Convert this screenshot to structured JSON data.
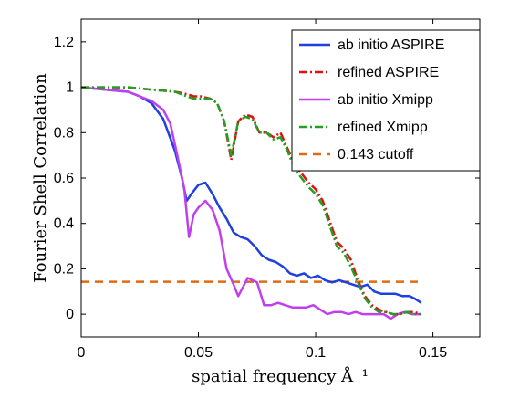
{
  "chart_data": {
    "type": "line",
    "title": "",
    "xlabel": "spatial frequency Å⁻¹",
    "ylabel": "Fourier Shell Correlation",
    "xlim": [
      0,
      0.17
    ],
    "ylim": [
      -0.1,
      1.3
    ],
    "xticks": [
      0,
      0.05,
      0.1,
      0.15
    ],
    "xtick_labels": [
      "0",
      "0.05",
      "0.1",
      "0.15"
    ],
    "yticks": [
      0,
      0.2,
      0.4,
      0.6,
      0.8,
      1,
      1.2
    ],
    "ytick_labels": [
      "0",
      "0.2",
      "0.4",
      "0.6",
      "0.8",
      "1",
      "1.2"
    ],
    "grid": false,
    "legend_position": "top-right",
    "series": [
      {
        "name": "ab initio ASPIRE",
        "color": "#1f3fe0",
        "style": "solid",
        "x": [
          0,
          0.01,
          0.02,
          0.025,
          0.03,
          0.035,
          0.04,
          0.043,
          0.045,
          0.047,
          0.05,
          0.053,
          0.056,
          0.059,
          0.062,
          0.065,
          0.068,
          0.071,
          0.074,
          0.077,
          0.08,
          0.083,
          0.086,
          0.089,
          0.092,
          0.095,
          0.098,
          0.101,
          0.104,
          0.107,
          0.11,
          0.113,
          0.116,
          0.119,
          0.122,
          0.125,
          0.128,
          0.131,
          0.134,
          0.137,
          0.14,
          0.142,
          0.145
        ],
        "y": [
          1.0,
          0.99,
          0.98,
          0.96,
          0.93,
          0.86,
          0.72,
          0.6,
          0.5,
          0.53,
          0.57,
          0.58,
          0.53,
          0.47,
          0.42,
          0.36,
          0.34,
          0.33,
          0.3,
          0.26,
          0.24,
          0.23,
          0.21,
          0.18,
          0.17,
          0.18,
          0.16,
          0.17,
          0.15,
          0.14,
          0.15,
          0.14,
          0.13,
          0.12,
          0.13,
          0.1,
          0.09,
          0.09,
          0.09,
          0.08,
          0.08,
          0.07,
          0.05
        ]
      },
      {
        "name": "refined ASPIRE",
        "color": "#e01010",
        "style": "dashdot",
        "x": [
          0,
          0.01,
          0.02,
          0.03,
          0.04,
          0.045,
          0.048,
          0.051,
          0.055,
          0.058,
          0.061,
          0.064,
          0.067,
          0.07,
          0.073,
          0.076,
          0.079,
          0.082,
          0.085,
          0.088,
          0.091,
          0.094,
          0.097,
          0.1,
          0.103,
          0.106,
          0.109,
          0.112,
          0.115,
          0.118,
          0.121,
          0.124,
          0.127,
          0.13,
          0.133,
          0.136,
          0.139,
          0.142,
          0.145
        ],
        "y": [
          1.0,
          1.0,
          1.0,
          0.99,
          0.98,
          0.97,
          0.96,
          0.96,
          0.95,
          0.93,
          0.85,
          0.68,
          0.85,
          0.88,
          0.87,
          0.8,
          0.8,
          0.78,
          0.8,
          0.73,
          0.66,
          0.62,
          0.58,
          0.55,
          0.5,
          0.41,
          0.32,
          0.29,
          0.24,
          0.15,
          0.08,
          0.04,
          0.02,
          0.01,
          0.0,
          0.0,
          0.01,
          0.01,
          0.0
        ]
      },
      {
        "name": "ab initio Xmipp",
        "color": "#c040f0",
        "style": "solid",
        "x": [
          0,
          0.01,
          0.02,
          0.03,
          0.035,
          0.038,
          0.041,
          0.044,
          0.046,
          0.048,
          0.05,
          0.053,
          0.056,
          0.059,
          0.062,
          0.065,
          0.067,
          0.069,
          0.071,
          0.073,
          0.075,
          0.078,
          0.081,
          0.084,
          0.087,
          0.09,
          0.093,
          0.096,
          0.099,
          0.102,
          0.105,
          0.108,
          0.111,
          0.114,
          0.117,
          0.12,
          0.123,
          0.126,
          0.129,
          0.132,
          0.135,
          0.138,
          0.141,
          0.145
        ],
        "y": [
          1.0,
          0.99,
          0.98,
          0.94,
          0.9,
          0.84,
          0.7,
          0.55,
          0.34,
          0.44,
          0.47,
          0.5,
          0.46,
          0.37,
          0.2,
          0.13,
          0.08,
          0.12,
          0.16,
          0.15,
          0.14,
          0.04,
          0.04,
          0.05,
          0.04,
          0.03,
          0.03,
          0.03,
          0.04,
          0.02,
          0.0,
          0.01,
          0.01,
          0.0,
          0.01,
          0.0,
          0.0,
          0.0,
          0.0,
          -0.02,
          0.0,
          0.01,
          0.0,
          0.0
        ]
      },
      {
        "name": "refined Xmipp",
        "color": "#22a022",
        "style": "dashdot",
        "x": [
          0,
          0.01,
          0.02,
          0.03,
          0.04,
          0.045,
          0.048,
          0.051,
          0.055,
          0.058,
          0.061,
          0.064,
          0.067,
          0.07,
          0.073,
          0.076,
          0.079,
          0.082,
          0.085,
          0.088,
          0.091,
          0.094,
          0.097,
          0.1,
          0.103,
          0.106,
          0.109,
          0.112,
          0.115,
          0.118,
          0.121,
          0.124,
          0.127,
          0.13,
          0.133,
          0.136,
          0.139,
          0.142,
          0.145
        ],
        "y": [
          1.0,
          1.0,
          1.0,
          0.99,
          0.98,
          0.96,
          0.95,
          0.95,
          0.95,
          0.93,
          0.85,
          0.7,
          0.85,
          0.87,
          0.86,
          0.8,
          0.8,
          0.77,
          0.78,
          0.72,
          0.64,
          0.6,
          0.56,
          0.53,
          0.48,
          0.39,
          0.3,
          0.27,
          0.21,
          0.14,
          0.07,
          0.03,
          0.01,
          0.01,
          0.0,
          0.0,
          0.01,
          0.0,
          0.0
        ]
      },
      {
        "name": "0.143 cutoff",
        "color": "#e06a10",
        "style": "dashed",
        "x": [
          0,
          0.145
        ],
        "y": [
          0.143,
          0.143
        ]
      }
    ]
  }
}
